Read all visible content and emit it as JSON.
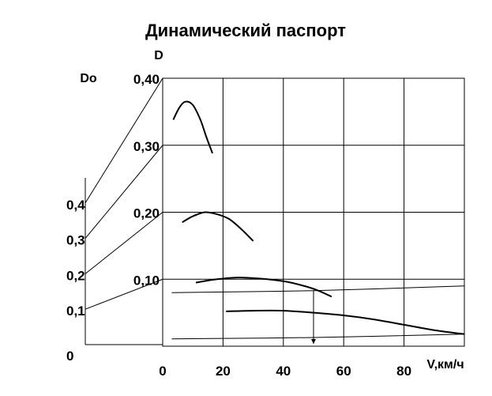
{
  "chart_data": {
    "type": "line",
    "title": "Динамический паспорт",
    "ylabel": "D",
    "y2label": "Do",
    "xlabel": "V,км/ч",
    "xlim": [
      0,
      100
    ],
    "ylim": [
      0,
      0.4
    ],
    "x_ticks": [
      "0",
      "20",
      "40",
      "60",
      "80"
    ],
    "x_tick_values": [
      0,
      20,
      40,
      60,
      80
    ],
    "y_ticks": [
      "0,10",
      "0,20",
      "0,30",
      "0,40"
    ],
    "y_tick_values": [
      0.1,
      0.2,
      0.3,
      0.4
    ],
    "do_ticks": [
      "0",
      "0,1",
      "0,2",
      "0,3",
      "0,4"
    ],
    "do_tick_values": [
      0,
      0.1,
      0.2,
      0.3,
      0.4
    ],
    "grid": true,
    "series": [
      {
        "points": [
          [
            3.5,
            0.338
          ],
          [
            5.5,
            0.356
          ],
          [
            7.5,
            0.365
          ],
          [
            10,
            0.36
          ],
          [
            12.5,
            0.338
          ],
          [
            14.5,
            0.312
          ],
          [
            16.5,
            0.288
          ]
        ]
      },
      {
        "points": [
          [
            6.5,
            0.185
          ],
          [
            10,
            0.194
          ],
          [
            14,
            0.2
          ],
          [
            18,
            0.197
          ],
          [
            22,
            0.19
          ],
          [
            26,
            0.175
          ],
          [
            30,
            0.157
          ]
        ]
      },
      {
        "points": [
          [
            11,
            0.095
          ],
          [
            18,
            0.1
          ],
          [
            25,
            0.1025
          ],
          [
            32,
            0.101
          ],
          [
            40,
            0.097
          ],
          [
            46,
            0.091
          ],
          [
            51,
            0.084
          ],
          [
            56,
            0.074
          ]
        ]
      },
      {
        "points": [
          [
            21,
            0.052
          ],
          [
            30,
            0.053
          ],
          [
            40,
            0.053
          ],
          [
            50,
            0.05
          ],
          [
            60,
            0.046
          ],
          [
            70,
            0.04
          ],
          [
            80,
            0.032
          ],
          [
            90,
            0.024
          ],
          [
            100,
            0.018
          ]
        ]
      },
      {
        "points": [
          [
            3,
            0.08
          ],
          [
            50,
            0.083
          ],
          [
            100,
            0.09
          ]
        ]
      },
      {
        "points": [
          [
            3,
            0.011
          ],
          [
            50,
            0.013
          ],
          [
            100,
            0.018
          ]
        ]
      }
    ],
    "guides": [
      {
        "do": 0.1,
        "d": 0.1
      },
      {
        "do": 0.2,
        "d": 0.2
      },
      {
        "do": 0.3,
        "d": 0.3
      },
      {
        "do": 0.4,
        "d": 0.4
      }
    ],
    "annotation_arrow": {
      "x": 50,
      "y_from": 0.083,
      "y_to": 0.0
    }
  }
}
